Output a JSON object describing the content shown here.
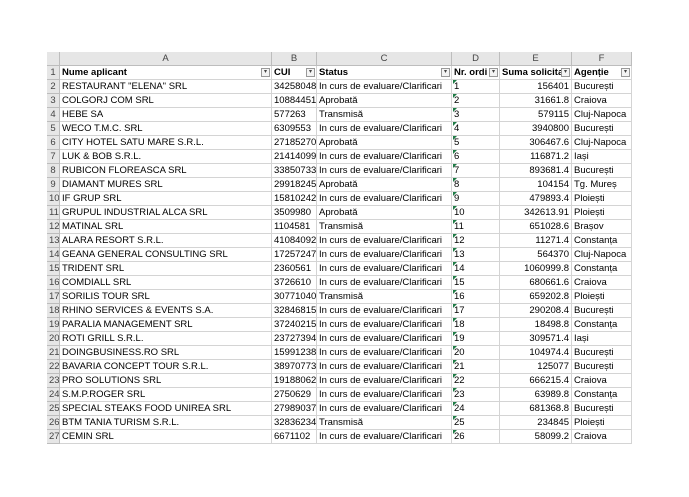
{
  "sheet": {
    "column_letters": [
      "A",
      "B",
      "C",
      "D",
      "E",
      "F"
    ],
    "header": [
      "Nume aplicant",
      "CUI",
      "Status",
      "Nr. ordi",
      "Suma solicita",
      "Agenție"
    ],
    "row_numbers": [
      1,
      2,
      3,
      4,
      5,
      6,
      7,
      8,
      9,
      10,
      11,
      12,
      13,
      14,
      15,
      16,
      17,
      18,
      19,
      20,
      21,
      22,
      23,
      24,
      25,
      26,
      27
    ],
    "rows": [
      [
        "RESTAURANT \"ELENA\" SRL",
        "34258048",
        "In curs de evaluare/Clarificari",
        1,
        156401,
        "București"
      ],
      [
        "COLGORJ COM SRL",
        "10884451",
        "Aprobată",
        2,
        31661.8,
        "Craiova"
      ],
      [
        "HEBE SA",
        "577263",
        "Transmisă",
        3,
        579115,
        "Cluj-Napoca"
      ],
      [
        "WECO T.M.C. SRL",
        "6309553",
        "In curs de evaluare/Clarificari",
        4,
        3940800,
        "București"
      ],
      [
        "CITY HOTEL SATU MARE S.R.L.",
        "27185270",
        "Aprobată",
        5,
        306467.6,
        "Cluj-Napoca"
      ],
      [
        "LUK & BOB S.R.L.",
        "21414099",
        "In curs de evaluare/Clarificari",
        6,
        116871.2,
        "Iași"
      ],
      [
        "RUBICON FLOREASCA SRL",
        "33850733",
        "In curs de evaluare/Clarificari",
        7,
        893681.4,
        "București"
      ],
      [
        "DIAMANT MURES SRL",
        "29918245",
        "Aprobată",
        8,
        104154,
        "Tg. Mureș"
      ],
      [
        "IF GRUP SRL",
        "15810242",
        "In curs de evaluare/Clarificari",
        9,
        479893.4,
        "Ploiești"
      ],
      [
        "GRUPUL INDUSTRIAL ALCA SRL",
        "3509980",
        "Aprobată",
        10,
        342613.91,
        "Ploiești"
      ],
      [
        "MATINAL SRL",
        "1104581",
        "Transmisă",
        11,
        651028.6,
        "Brașov"
      ],
      [
        "ALARA RESORT S.R.L.",
        "41084092",
        "In curs de evaluare/Clarificari",
        12,
        11271.4,
        "Constanța"
      ],
      [
        "GEANA GENERAL CONSULTING SRL",
        "17257247",
        "In curs de evaluare/Clarificari",
        13,
        564370,
        "Cluj-Napoca"
      ],
      [
        "TRIDENT SRL",
        "2360561",
        "In curs de evaluare/Clarificari",
        14,
        1060999.8,
        "Constanța"
      ],
      [
        "COMDIALL SRL",
        "3726610",
        "In curs de evaluare/Clarificari",
        15,
        680661.6,
        "Craiova"
      ],
      [
        "SORILIS TOUR SRL",
        "30771040",
        "Transmisă",
        16,
        659202.8,
        "Ploiești"
      ],
      [
        "RHINO SERVICES & EVENTS S.A.",
        "32846815",
        "In curs de evaluare/Clarificari",
        17,
        290208.4,
        "București"
      ],
      [
        "PARALIA MANAGEMENT SRL",
        "37240215",
        "In curs de evaluare/Clarificari",
        18,
        18498.8,
        "Constanța"
      ],
      [
        "ROTI GRILL S.R.L.",
        "23727394",
        "In curs de evaluare/Clarificari",
        19,
        309571.4,
        "Iași"
      ],
      [
        "DOINGBUSINESS.RO SRL",
        "15991238",
        "In curs de evaluare/Clarificari",
        20,
        104974.4,
        "București"
      ],
      [
        "BAVARIA CONCEPT TOUR S.R.L.",
        "38970773",
        "In curs de evaluare/Clarificari",
        21,
        125077,
        "București"
      ],
      [
        "PRO SOLUTIONS SRL",
        "19188062",
        "In curs de evaluare/Clarificari",
        22,
        666215.4,
        "Craiova"
      ],
      [
        "S.M.P.ROGER SRL",
        "2750629",
        "In curs de evaluare/Clarificari",
        23,
        63989.8,
        "Constanța"
      ],
      [
        "SPECIAL STEAKS FOOD UNIREA SRL",
        "27989037",
        "In curs de evaluare/Clarificari",
        24,
        681368.8,
        "București"
      ],
      [
        "BTM TANIA TURISM S.R.L.",
        "32836234",
        "Transmisă",
        25,
        234845,
        "Ploiești"
      ],
      [
        "CEMIN SRL",
        "6671102",
        "In curs de evaluare/Clarificari",
        26,
        58099.2,
        "Craiova"
      ]
    ]
  }
}
